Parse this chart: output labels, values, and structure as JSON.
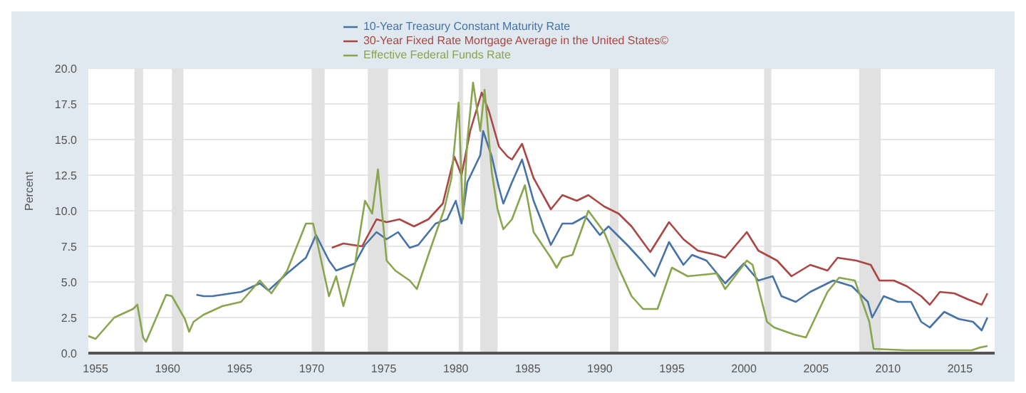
{
  "chart_data": {
    "type": "line",
    "ylabel": "Percent",
    "xlim": [
      1954.5,
      2017.4
    ],
    "xticks": [
      1955,
      1960,
      1965,
      1970,
      1975,
      1980,
      1985,
      1990,
      1995,
      2000,
      2005,
      2010,
      2015
    ],
    "ylim": [
      0,
      20
    ],
    "yticks": [
      {
        "value": 0,
        "label": "0.0"
      },
      {
        "value": 2.5,
        "label": "2.5"
      },
      {
        "value": 5,
        "label": "5.0"
      },
      {
        "value": 7.5,
        "label": "7.5"
      },
      {
        "value": 10,
        "label": "10.0"
      },
      {
        "value": 12.5,
        "label": "12.5"
      },
      {
        "value": 15,
        "label": "15.0"
      },
      {
        "value": 17.5,
        "label": "17.5"
      },
      {
        "value": 20,
        "label": "20.0"
      }
    ],
    "grid": "y",
    "legend": "top",
    "marker": "none",
    "line_style": "solid",
    "bands": [
      {
        "axis": "x",
        "from": 1957.7,
        "to": 1958.3,
        "color": "#e1e1e1"
      },
      {
        "axis": "x",
        "from": 1960.3,
        "to": 1961.1,
        "color": "#e1e1e1"
      },
      {
        "axis": "x",
        "from": 1970.0,
        "to": 1970.9,
        "color": "#e1e1e1"
      },
      {
        "axis": "x",
        "from": 1973.9,
        "to": 1975.3,
        "color": "#e1e1e1"
      },
      {
        "axis": "x",
        "from": 1980.2,
        "to": 1980.5,
        "color": "#e1e1e1"
      },
      {
        "axis": "x",
        "from": 1981.7,
        "to": 1982.9,
        "color": "#e1e1e1"
      },
      {
        "axis": "x",
        "from": 1990.7,
        "to": 1991.3,
        "color": "#e1e1e1"
      },
      {
        "axis": "x",
        "from": 2001.4,
        "to": 2001.9,
        "color": "#e1e1e1"
      },
      {
        "axis": "x",
        "from": 2008.0,
        "to": 2009.5,
        "color": "#e1e1e1"
      }
    ],
    "series": [
      {
        "name": "10-Year Treasury Constant Maturity Rate",
        "color": "#4572a7",
        "x": [
          1962.0,
          1962.5,
          1963.1,
          1965.1,
          1966.4,
          1967.0,
          1968.3,
          1969.6,
          1970.3,
          1971.2,
          1971.7,
          1973.0,
          1973.7,
          1974.5,
          1975.2,
          1976.0,
          1976.8,
          1977.4,
          1978.6,
          1979.4,
          1980.0,
          1980.4,
          1980.8,
          1981.7,
          1981.9,
          1982.5,
          1983.0,
          1983.3,
          1983.9,
          1984.6,
          1985.4,
          1986.6,
          1987.4,
          1988.1,
          1989.0,
          1990.0,
          1990.6,
          1991.9,
          1992.9,
          1993.8,
          1994.8,
          1995.8,
          1996.4,
          1997.4,
          1998.7,
          2000.0,
          2001.0,
          2002.0,
          2002.6,
          2003.6,
          2004.6,
          2006.2,
          2007.5,
          2008.6,
          2008.9,
          2009.7,
          2010.7,
          2011.6,
          2012.3,
          2012.9,
          2013.9,
          2014.9,
          2015.9,
          2016.5,
          2016.9
        ],
        "values": [
          4.1,
          4.0,
          4.0,
          4.3,
          4.9,
          4.4,
          5.6,
          6.7,
          8.3,
          6.5,
          5.8,
          6.3,
          7.6,
          8.5,
          8.0,
          8.5,
          7.4,
          7.6,
          9.1,
          9.4,
          10.7,
          9.1,
          12.0,
          13.9,
          15.6,
          13.8,
          11.6,
          10.5,
          12.0,
          13.6,
          10.7,
          7.6,
          9.1,
          9.1,
          9.6,
          8.3,
          8.9,
          7.6,
          6.5,
          5.4,
          7.8,
          6.2,
          6.9,
          6.5,
          4.9,
          6.3,
          5.1,
          5.4,
          4.0,
          3.6,
          4.3,
          5.1,
          4.7,
          3.6,
          2.5,
          4.0,
          3.6,
          3.6,
          2.2,
          1.8,
          2.9,
          2.4,
          2.2,
          1.6,
          2.5
        ]
      },
      {
        "name": "30-Year Fixed Rate Mortgage Average in the United States©",
        "color": "#aa4643",
        "x": [
          1971.4,
          1972.2,
          1973.5,
          1974.5,
          1975.2,
          1976.1,
          1977.1,
          1978.1,
          1979.1,
          1979.9,
          1980.4,
          1981.0,
          1981.8,
          1982.3,
          1983.0,
          1983.6,
          1983.9,
          1984.6,
          1985.4,
          1986.6,
          1987.4,
          1988.4,
          1989.2,
          1990.3,
          1991.3,
          1992.2,
          1993.5,
          1994.8,
          1995.8,
          1996.8,
          1998.1,
          1998.7,
          2000.2,
          2001.0,
          2002.3,
          2003.3,
          2004.6,
          2005.8,
          2006.5,
          2007.8,
          2008.8,
          2009.4,
          2010.4,
          2011.3,
          2012.3,
          2012.9,
          2013.6,
          2014.6,
          2015.5,
          2016.5,
          2016.9
        ],
        "values": [
          7.4,
          7.7,
          7.5,
          9.4,
          9.2,
          9.4,
          8.9,
          9.4,
          10.5,
          13.8,
          12.5,
          15.6,
          18.3,
          17.0,
          14.5,
          13.8,
          13.6,
          14.7,
          12.3,
          10.1,
          11.1,
          10.7,
          11.1,
          10.3,
          9.8,
          8.9,
          7.1,
          9.2,
          8.0,
          7.2,
          6.9,
          6.7,
          8.5,
          7.2,
          6.5,
          5.4,
          6.2,
          5.8,
          6.7,
          6.5,
          6.2,
          5.1,
          5.1,
          4.7,
          4.0,
          3.4,
          4.3,
          4.2,
          3.8,
          3.4,
          4.2
        ]
      },
      {
        "name": "Effective Federal Funds Rate",
        "color": "#89a54e",
        "x": [
          1954.5,
          1955.0,
          1956.3,
          1957.6,
          1957.9,
          1958.3,
          1958.5,
          1959.9,
          1960.3,
          1961.2,
          1961.5,
          1961.8,
          1962.5,
          1963.8,
          1965.1,
          1966.4,
          1967.2,
          1968.3,
          1969.6,
          1970.1,
          1971.2,
          1971.7,
          1972.2,
          1973.0,
          1973.7,
          1974.2,
          1974.6,
          1975.2,
          1975.8,
          1976.8,
          1977.3,
          1978.2,
          1979.2,
          1979.7,
          1980.2,
          1980.5,
          1980.8,
          1981.2,
          1981.7,
          1982.0,
          1982.5,
          1982.9,
          1983.3,
          1983.9,
          1984.8,
          1985.4,
          1986.6,
          1987.0,
          1987.4,
          1988.1,
          1989.2,
          1990.3,
          1991.3,
          1992.2,
          1993.0,
          1994.0,
          1995.0,
          1996.1,
          1998.1,
          1998.7,
          2000.2,
          2000.6,
          2001.6,
          2002.1,
          2003.5,
          2004.3,
          2005.8,
          2006.6,
          2007.7,
          2008.7,
          2009.0,
          2011.3,
          2015.8,
          2016.4,
          2016.9
        ],
        "values": [
          1.2,
          1.0,
          2.5,
          3.1,
          3.4,
          1.1,
          0.8,
          4.1,
          4.0,
          2.4,
          1.5,
          2.2,
          2.7,
          3.3,
          3.6,
          5.1,
          4.2,
          5.8,
          9.1,
          9.1,
          4.0,
          5.4,
          3.3,
          6.2,
          10.7,
          9.8,
          12.9,
          6.5,
          5.8,
          5.1,
          4.5,
          7.2,
          10.1,
          12.3,
          17.6,
          9.4,
          14.9,
          19.0,
          15.6,
          18.5,
          12.7,
          10.1,
          8.7,
          9.4,
          11.8,
          8.5,
          6.7,
          6.0,
          6.7,
          6.9,
          10.0,
          8.5,
          6.0,
          4.0,
          3.1,
          3.1,
          6.0,
          5.4,
          5.6,
          4.5,
          6.5,
          6.2,
          2.2,
          1.8,
          1.3,
          1.1,
          4.3,
          5.3,
          5.1,
          2.2,
          0.3,
          0.2,
          0.2,
          0.4,
          0.5
        ]
      }
    ]
  }
}
